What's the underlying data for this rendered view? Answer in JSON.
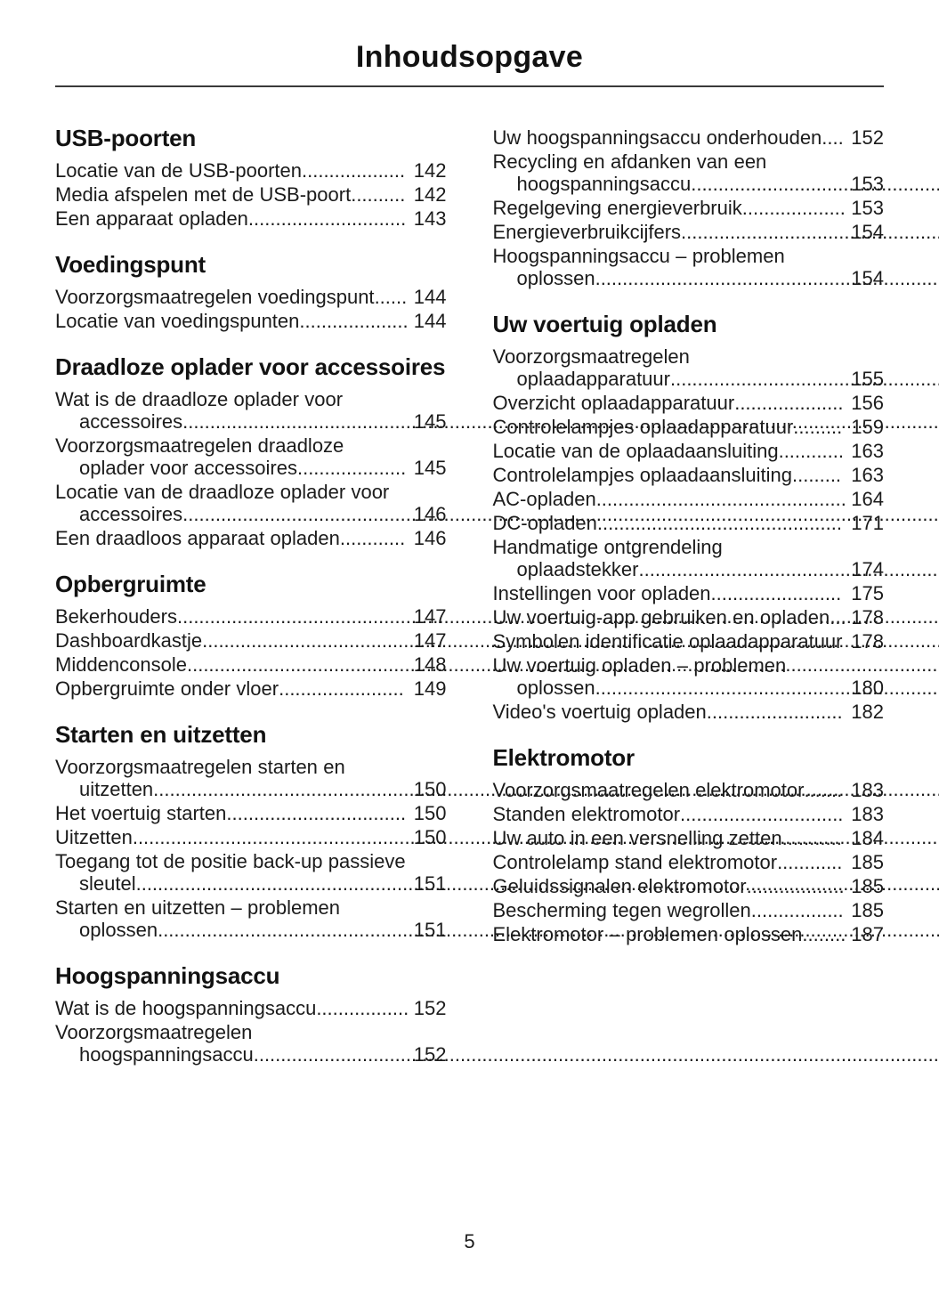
{
  "document": {
    "title": "Inhoudsopgave",
    "footer_page_number": "5"
  },
  "toc": {
    "columns": [
      {
        "blocks": [
          {
            "type": "heading",
            "text": "USB-poorten"
          },
          {
            "type": "entry",
            "text": "Locatie van de USB-poorten",
            "page": "142"
          },
          {
            "type": "entry",
            "text": "Media afspelen met de USB-poort",
            "page": "142"
          },
          {
            "type": "entry",
            "text": "Een apparaat opladen",
            "page": "143"
          },
          {
            "type": "heading",
            "text": "Voedingspunt"
          },
          {
            "type": "entry",
            "text": "Voorzorgsmaatregelen voedingspunt",
            "page": "144"
          },
          {
            "type": "entry",
            "text": "Locatie van voedingspunten",
            "page": "144"
          },
          {
            "type": "heading",
            "text": "Draadloze oplader voor accessoires"
          },
          {
            "type": "entry",
            "text": "Wat is de draadloze oplader voor accessoires",
            "page": "145"
          },
          {
            "type": "entry",
            "text": "Voorzorgsmaatregelen draadloze oplader voor accessoires",
            "page": "145"
          },
          {
            "type": "entry",
            "text": "Locatie van de draadloze oplader voor accessoires",
            "page": "146"
          },
          {
            "type": "entry",
            "text": "Een draadloos apparaat opladen",
            "page": "146"
          },
          {
            "type": "heading",
            "text": "Opbergruimte"
          },
          {
            "type": "entry",
            "text": "Bekerhouders",
            "page": "147"
          },
          {
            "type": "entry",
            "text": "Dashboardkastje",
            "page": "147"
          },
          {
            "type": "entry",
            "text": "Middenconsole",
            "page": "148"
          },
          {
            "type": "entry",
            "text": "Opbergruimte onder vloer",
            "page": "149"
          },
          {
            "type": "heading",
            "text": "Starten en uitzetten"
          },
          {
            "type": "entry",
            "text": "Voorzorgsmaatregelen starten en uitzetten",
            "page": "150"
          },
          {
            "type": "entry",
            "text": "Het voertuig starten",
            "page": "150"
          },
          {
            "type": "entry",
            "text": "Uitzetten",
            "page": "150"
          },
          {
            "type": "entry",
            "text": "Toegang tot de positie back-up passieve sleutel",
            "page": "151"
          },
          {
            "type": "entry",
            "text": "Starten en uitzetten – problemen oplossen",
            "page": "151"
          },
          {
            "type": "heading",
            "text": "Hoogspanningsaccu"
          },
          {
            "type": "entry",
            "text": "Wat is de hoogspanningsaccu",
            "page": "152"
          },
          {
            "type": "entry",
            "text": "Voorzorgsmaatregelen hoogspanningsaccu",
            "page": "152"
          }
        ]
      },
      {
        "blocks": [
          {
            "type": "entry",
            "text": "Uw hoogspanningsaccu onderhouden",
            "page": "152"
          },
          {
            "type": "entry",
            "text": "Recycling en afdanken van een hoogspanningsaccu",
            "page": "153"
          },
          {
            "type": "entry",
            "text": "Regelgeving energieverbruik",
            "page": "153"
          },
          {
            "type": "entry",
            "text": "Energieverbruikcijfers",
            "page": "154"
          },
          {
            "type": "entry",
            "text": "Hoogspanningsaccu – problemen oplossen",
            "page": "154"
          },
          {
            "type": "heading",
            "text": "Uw voertuig opladen"
          },
          {
            "type": "entry",
            "text": "Voorzorgsmaatregelen oplaadapparatuur",
            "page": "155"
          },
          {
            "type": "entry",
            "text": "Overzicht oplaadapparatuur",
            "page": "156"
          },
          {
            "type": "entry",
            "text": "Controlelampjes oplaadapparatuur",
            "page": "159"
          },
          {
            "type": "entry",
            "text": "Locatie van de oplaadaansluiting",
            "page": "163"
          },
          {
            "type": "entry",
            "text": "Controlelampjes oplaadaansluiting",
            "page": "163"
          },
          {
            "type": "entry",
            "text": "AC-opladen",
            "page": "164"
          },
          {
            "type": "entry",
            "text": "DC-opladen",
            "page": "171"
          },
          {
            "type": "entry",
            "text": "Handmatige ontgrendeling oplaadstekker",
            "page": "174"
          },
          {
            "type": "entry",
            "text": "Instellingen voor opladen",
            "page": "175"
          },
          {
            "type": "entry",
            "text": "Uw voertuig-app gebruiken en opladen",
            "page": "178"
          },
          {
            "type": "entry",
            "text": "Symbolen identificatie oplaadapparatuur",
            "page": "178"
          },
          {
            "type": "entry",
            "text": "Uw voertuig opladen – problemen oplossen",
            "page": "180"
          },
          {
            "type": "entry",
            "text": "Video's voertuig opladen",
            "page": "182"
          },
          {
            "type": "heading",
            "text": "Elektromotor"
          },
          {
            "type": "entry",
            "text": "Voorzorgsmaatregelen elektromotor",
            "page": "183"
          },
          {
            "type": "entry",
            "text": "Standen elektromotor",
            "page": "183"
          },
          {
            "type": "entry",
            "text": "Uw auto in een versnelling zetten",
            "page": "184"
          },
          {
            "type": "entry",
            "text": "Controlelamp stand elektromotor",
            "page": "185"
          },
          {
            "type": "entry",
            "text": "Geluidssignalen elektromotor",
            "page": "185"
          },
          {
            "type": "entry",
            "text": "Bescherming tegen wegrollen",
            "page": "185"
          },
          {
            "type": "entry",
            "text": "Elektromotor – problemen oplossen",
            "page": "187"
          }
        ]
      }
    ]
  }
}
